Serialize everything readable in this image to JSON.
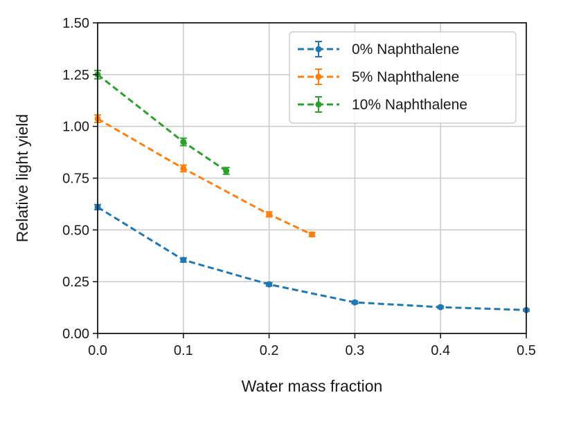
{
  "chart_data": {
    "type": "line",
    "title": "",
    "xlabel": "Water mass fraction",
    "ylabel": "Relative light yield",
    "xlim": [
      0.0,
      0.5
    ],
    "ylim": [
      0.0,
      1.5
    ],
    "xticks": [
      "0.0",
      "0.1",
      "0.2",
      "0.3",
      "0.4",
      "0.5"
    ],
    "yticks": [
      "0.00",
      "0.25",
      "0.50",
      "0.75",
      "1.00",
      "1.25",
      "1.50"
    ],
    "grid": true,
    "legend_position": "top-right",
    "series": [
      {
        "name": "0% Naphthalene",
        "color": "#1f77b4",
        "x": [
          0.0,
          0.1,
          0.2,
          0.3,
          0.4,
          0.5
        ],
        "y": [
          0.61,
          0.355,
          0.237,
          0.15,
          0.127,
          0.113
        ],
        "err": [
          0.012,
          0.01,
          0.008,
          0.006,
          0.005,
          0.005
        ]
      },
      {
        "name": "5% Naphthalene",
        "color": "#ff7f0e",
        "x": [
          0.0,
          0.1,
          0.2,
          0.25
        ],
        "y": [
          1.037,
          0.797,
          0.575,
          0.478
        ],
        "err": [
          0.018,
          0.016,
          0.012,
          0.01
        ]
      },
      {
        "name": "10% Naphthalene",
        "color": "#2ca02c",
        "x": [
          0.0,
          0.1,
          0.15
        ],
        "y": [
          1.25,
          0.925,
          0.785
        ],
        "err": [
          0.02,
          0.018,
          0.016
        ]
      }
    ]
  }
}
